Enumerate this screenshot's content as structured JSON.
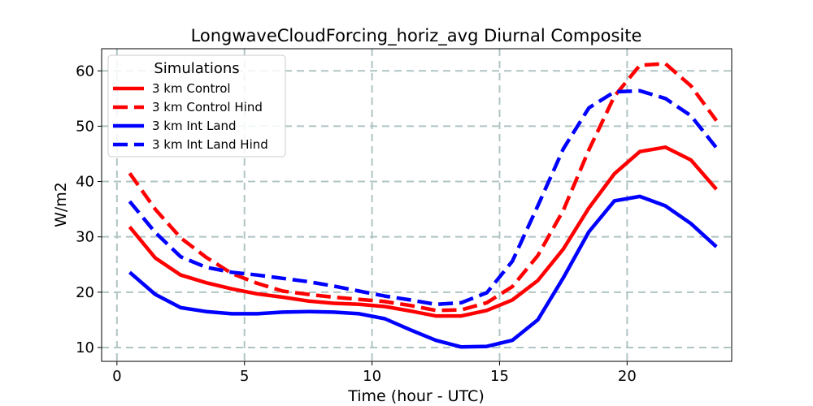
{
  "chart_data": {
    "type": "line",
    "title": "LongwaveCloudForcing_horiz_avg Diurnal Composite",
    "xlabel": "Time (hour - UTC)",
    "ylabel": "W/m2",
    "xlim": [
      -0.6,
      24.1
    ],
    "ylim": [
      7.5,
      64
    ],
    "xticks": [
      0,
      5,
      10,
      15,
      20
    ],
    "yticks": [
      10,
      20,
      30,
      40,
      50,
      60
    ],
    "grid": true,
    "legend": {
      "title": "Simulations",
      "placement": "top-left"
    },
    "x": [
      0.5,
      1.5,
      2.5,
      3.5,
      4.5,
      5.5,
      6.5,
      7.5,
      8.5,
      9.5,
      10.5,
      11.5,
      12.5,
      13.5,
      14.5,
      15.5,
      16.5,
      17.5,
      18.5,
      19.5,
      20.5,
      21.5,
      22.5,
      23.5
    ],
    "series": [
      {
        "name": "3 km Control",
        "color": "#ff0000",
        "dash": "solid",
        "values": [
          31.8,
          26.2,
          23.1,
          21.7,
          20.6,
          19.7,
          19.1,
          18.4,
          18.0,
          17.8,
          17.4,
          16.6,
          15.7,
          15.7,
          16.7,
          18.6,
          22.1,
          27.8,
          35.2,
          41.4,
          45.4,
          46.2,
          43.9,
          38.6
        ]
      },
      {
        "name": "3 km Control Hind",
        "color": "#ff0000",
        "dash": "dashed",
        "values": [
          41.5,
          35.0,
          29.8,
          26.3,
          23.4,
          21.6,
          20.2,
          19.6,
          19.1,
          18.7,
          18.3,
          17.6,
          16.7,
          16.8,
          18.1,
          21.0,
          26.6,
          34.8,
          45.7,
          55.4,
          61.0,
          61.3,
          57.3,
          51.0
        ]
      },
      {
        "name": "3 km Int Land",
        "color": "#0000ff",
        "dash": "solid",
        "values": [
          23.6,
          19.6,
          17.2,
          16.5,
          16.1,
          16.1,
          16.4,
          16.5,
          16.4,
          16.1,
          15.2,
          13.2,
          11.3,
          10.1,
          10.2,
          11.3,
          15.0,
          22.6,
          30.9,
          36.5,
          37.3,
          35.6,
          32.4,
          28.2
        ]
      },
      {
        "name": "3 km Int Land Hind",
        "color": "#0000ff",
        "dash": "dashed",
        "values": [
          36.4,
          30.8,
          26.4,
          24.5,
          23.6,
          23.1,
          22.5,
          21.9,
          21.1,
          20.2,
          19.3,
          18.6,
          17.8,
          18.1,
          19.9,
          25.6,
          35.6,
          45.9,
          53.3,
          56.2,
          56.4,
          55.0,
          51.9,
          46.1
        ]
      }
    ]
  }
}
